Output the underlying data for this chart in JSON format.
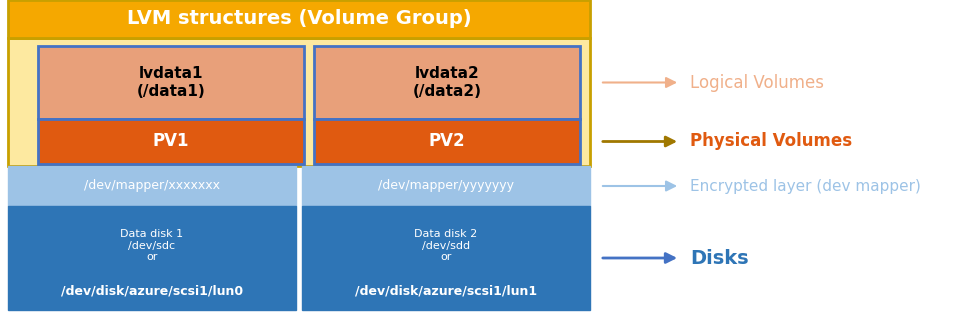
{
  "title": "LVM structures (Volume Group)",
  "title_bg": "#F5A800",
  "title_color": "#FFFFFF",
  "vg_bg": "#FDE9A0",
  "vg_border": "#C8A000",
  "lv_bg": "#E8A07A",
  "lv_border": "#4472C4",
  "pv_bg": "#E05A10",
  "pv_border": "#4472C4",
  "encrypted_bg": "#9DC3E6",
  "encrypted_border": "#9DC3E6",
  "disk_bg": "#2E75B6",
  "disk_border": "#2E75B6",
  "arrow_lv_color": "#F0B08A",
  "arrow_pv_color": "#A07800",
  "arrow_enc_color": "#9DC3E6",
  "arrow_disk_color": "#4472C4",
  "label_lv_color": "#F0B08A",
  "label_pv_color": "#E05A10",
  "label_enc_color": "#9DC3E6",
  "label_disk_color": "#2E75B6",
  "label_lv": "Logical Volumes",
  "label_pv": "Physical Volumes",
  "label_enc": "Encrypted layer (dev mapper)",
  "label_disk": "Disks",
  "lv1_text": "lvdata1\n(/data1)",
  "lv2_text": "lvdata2\n(/data2)",
  "pv1_text": "PV1",
  "pv2_text": "PV2",
  "enc1_text": "/dev/mapper/xxxxxxx",
  "enc2_text": "/dev/mapper/yyyyyyy",
  "disk1_line1": "Data disk 1\n/dev/sdc\nor",
  "disk1_line2": "/dev/disk/azure/scsi1/lun0",
  "disk2_line1": "Data disk 2\n/dev/sdd\nor",
  "disk2_line2": "/dev/disk/azure/scsi1/lun1"
}
